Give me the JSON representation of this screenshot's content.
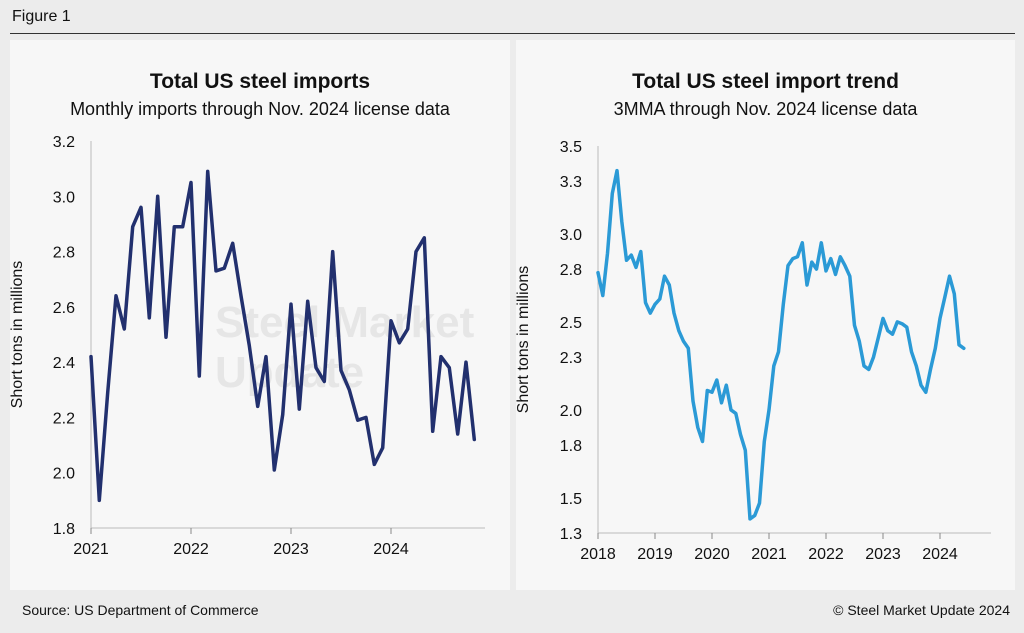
{
  "figure_label": "Figure 1",
  "source_text": "Source: US Department of Commerce",
  "copyright_text": "© Steel Market Update 2024",
  "watermark_text": "Steel Market Update",
  "colors": {
    "left_line": "#22306e",
    "right_line": "#2b9ad6"
  },
  "chart_data": [
    {
      "type": "line",
      "title": "Total US steel imports",
      "subtitle": "Monthly imports through Nov. 2024 license data",
      "ylabel": "Short tons in millions",
      "xlabel": "",
      "ylim": [
        1.8,
        3.2
      ],
      "yticks": [
        "1.8",
        "2.0",
        "2.2",
        "2.4",
        "2.6",
        "2.8",
        "3.0",
        "3.2"
      ],
      "xticks": [
        "2021",
        "2022",
        "2023",
        "2024"
      ],
      "x_start": "2021-01",
      "series": [
        {
          "values": [
            2.42,
            1.9,
            2.29,
            2.64,
            2.52,
            2.89,
            2.96,
            2.56,
            3.0,
            2.49,
            2.89,
            2.89,
            3.05,
            2.35,
            3.09,
            2.73,
            2.74,
            2.83,
            2.64,
            2.46,
            2.24,
            2.42,
            2.01,
            2.21,
            2.61,
            2.23,
            2.62,
            2.38,
            2.33,
            2.8,
            2.37,
            2.3,
            2.19,
            2.2,
            2.03,
            2.09,
            2.55,
            2.47,
            2.52,
            2.8,
            2.85,
            2.15,
            2.42,
            2.38,
            2.14,
            2.4,
            2.12
          ]
        }
      ]
    },
    {
      "type": "line",
      "title": "Total US steel import trend",
      "subtitle": "3MMA through Nov. 2024 license data",
      "ylabel": "Short tons in millions",
      "xlabel": "",
      "ylim": [
        1.3,
        3.5
      ],
      "yticks": [
        "1.3",
        "1.5",
        "1.8",
        "2.0",
        "2.3",
        "2.5",
        "2.8",
        "3.0",
        "3.3",
        "3.5"
      ],
      "xticks": [
        "2018",
        "2019",
        "2020",
        "2021",
        "2022",
        "2023",
        "2024"
      ],
      "x_start": "2018-01",
      "series": [
        {
          "values": [
            2.78,
            2.65,
            2.89,
            3.23,
            3.36,
            3.07,
            2.85,
            2.88,
            2.81,
            2.9,
            2.61,
            2.55,
            2.6,
            2.63,
            2.76,
            2.71,
            2.55,
            2.45,
            2.39,
            2.35,
            2.05,
            1.9,
            1.82,
            2.11,
            2.1,
            2.17,
            2.04,
            2.14,
            2.0,
            1.98,
            1.86,
            1.77,
            1.38,
            1.4,
            1.47,
            1.82,
            2.0,
            2.25,
            2.33,
            2.6,
            2.82,
            2.86,
            2.87,
            2.95,
            2.71,
            2.84,
            2.8,
            2.95,
            2.79,
            2.86,
            2.77,
            2.87,
            2.82,
            2.76,
            2.48,
            2.39,
            2.25,
            2.23,
            2.3,
            2.41,
            2.52,
            2.45,
            2.43,
            2.5,
            2.49,
            2.47,
            2.33,
            2.25,
            2.14,
            2.1,
            2.23,
            2.35,
            2.52,
            2.64,
            2.76,
            2.66,
            2.37,
            2.35
          ]
        }
      ]
    }
  ]
}
